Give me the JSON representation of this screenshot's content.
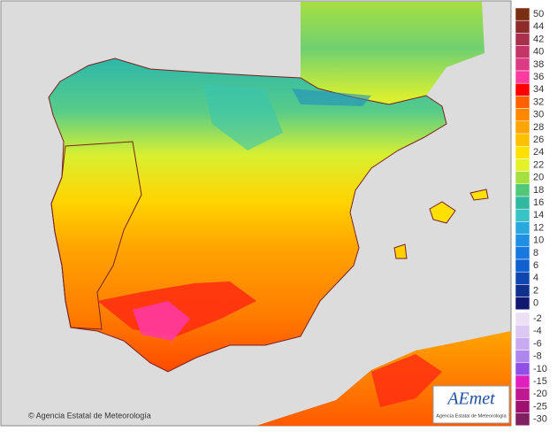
{
  "legend": {
    "items": [
      {
        "label": 50,
        "color": "#7a2e12"
      },
      {
        "label": 44,
        "color": "#8e2c2c"
      },
      {
        "label": 42,
        "color": "#a8304c"
      },
      {
        "label": 40,
        "color": "#c43466"
      },
      {
        "label": 38,
        "color": "#dc3c86"
      },
      {
        "label": 36,
        "color": "#ff3aa0"
      },
      {
        "label": 34,
        "color": "#ff0000"
      },
      {
        "label": 32,
        "color": "#ff6000"
      },
      {
        "label": 30,
        "color": "#ff8800"
      },
      {
        "label": 28,
        "color": "#ffa400"
      },
      {
        "label": 26,
        "color": "#ffc000"
      },
      {
        "label": 24,
        "color": "#ffe000"
      },
      {
        "label": 22,
        "color": "#e4f028"
      },
      {
        "label": 20,
        "color": "#a4e040"
      },
      {
        "label": 18,
        "color": "#50c878"
      },
      {
        "label": 16,
        "color": "#30b8a0"
      },
      {
        "label": 14,
        "color": "#38c4c4"
      },
      {
        "label": 12,
        "color": "#28a8dc"
      },
      {
        "label": 10,
        "color": "#2090e4"
      },
      {
        "label": 8,
        "color": "#1878e0"
      },
      {
        "label": 6,
        "color": "#1060d0"
      },
      {
        "label": 4,
        "color": "#1046b0"
      },
      {
        "label": 2,
        "color": "#10308e"
      },
      {
        "label": 0,
        "color": "#101870"
      }
    ],
    "negative_items": [
      {
        "label": -2,
        "color": "#ece0f4"
      },
      {
        "label": -4,
        "color": "#dcc8f2"
      },
      {
        "label": -6,
        "color": "#c8aaf0"
      },
      {
        "label": -8,
        "color": "#ae86ee"
      },
      {
        "label": -10,
        "color": "#9050e8"
      },
      {
        "label": -15,
        "color": "#e020c0"
      },
      {
        "label": -20,
        "color": "#c01890"
      },
      {
        "label": -25,
        "color": "#a01070"
      },
      {
        "label": -30,
        "color": "#802060"
      }
    ]
  },
  "credit": "© Agencia Estatal de Meteorología",
  "logo": {
    "name": "AEmet",
    "subtitle": "Agencia Estatal de Meteorología"
  }
}
